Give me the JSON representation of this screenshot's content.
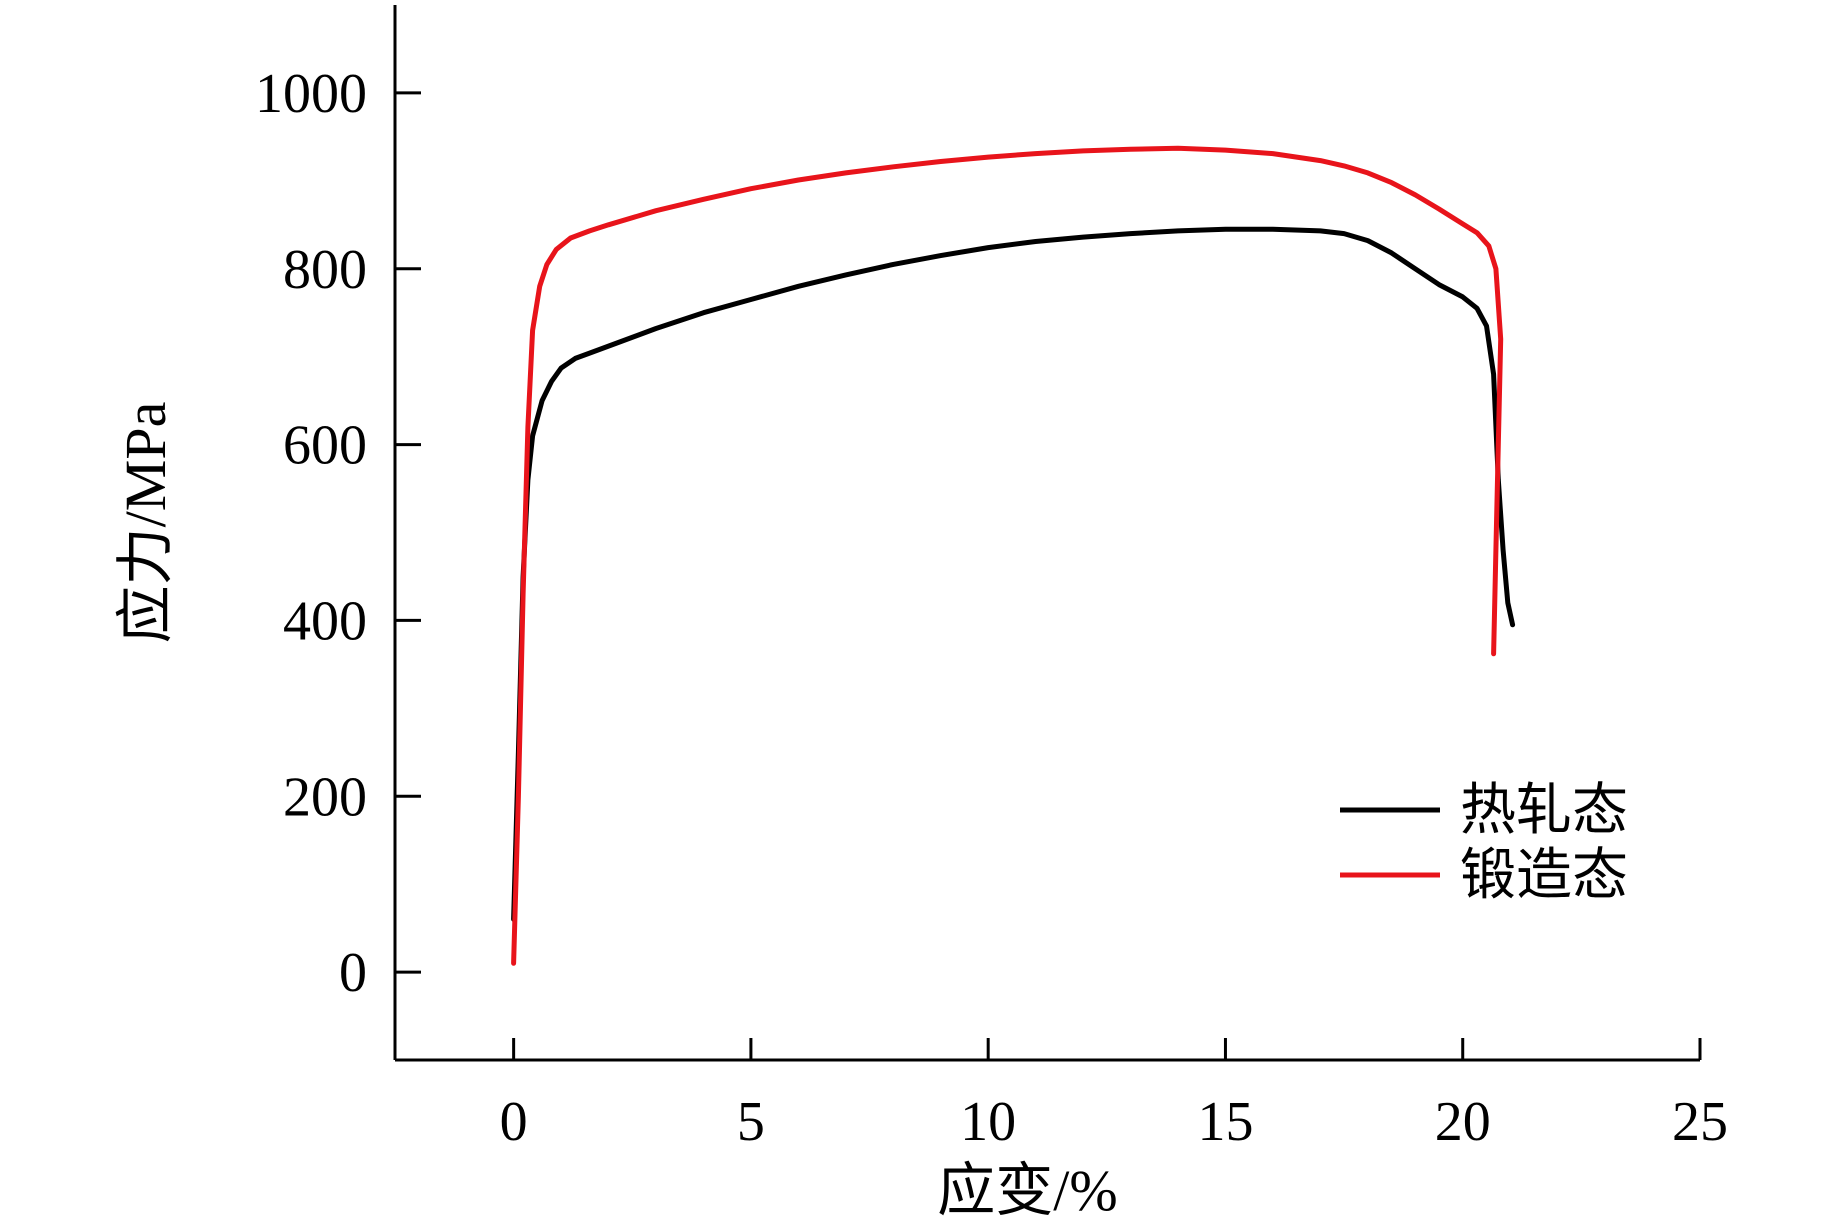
{
  "chart_data": {
    "type": "line",
    "title": "",
    "xlabel": "应变/%",
    "ylabel": "应力/MPa",
    "xlim": [
      -2.5,
      25
    ],
    "ylim": [
      -100,
      1100
    ],
    "x_ticks": [
      0,
      5,
      10,
      15,
      20,
      25
    ],
    "y_ticks": [
      0,
      200,
      400,
      600,
      800,
      1000
    ],
    "x_tick_labels": [
      "0",
      "5",
      "10",
      "15",
      "20",
      "25"
    ],
    "y_tick_labels": [
      "0",
      "200",
      "400",
      "600",
      "800",
      "1000"
    ],
    "grid": false,
    "legend_position": "bottom-right",
    "series": [
      {
        "name": "热轧态",
        "color": "#000000",
        "points": [
          [
            0.0,
            60
          ],
          [
            0.1,
            250
          ],
          [
            0.2,
            450
          ],
          [
            0.3,
            560
          ],
          [
            0.4,
            610
          ],
          [
            0.6,
            650
          ],
          [
            0.8,
            672
          ],
          [
            1.0,
            687
          ],
          [
            1.3,
            698
          ],
          [
            1.6,
            704
          ],
          [
            2.0,
            712
          ],
          [
            3.0,
            732
          ],
          [
            4.0,
            750
          ],
          [
            5.0,
            765
          ],
          [
            6.0,
            780
          ],
          [
            7.0,
            793
          ],
          [
            8.0,
            805
          ],
          [
            9.0,
            815
          ],
          [
            10.0,
            824
          ],
          [
            11.0,
            831
          ],
          [
            12.0,
            836
          ],
          [
            13.0,
            840
          ],
          [
            14.0,
            843
          ],
          [
            15.0,
            845
          ],
          [
            16.0,
            845
          ],
          [
            17.0,
            843
          ],
          [
            17.5,
            840
          ],
          [
            18.0,
            832
          ],
          [
            18.5,
            818
          ],
          [
            19.0,
            800
          ],
          [
            19.5,
            782
          ],
          [
            20.0,
            768
          ],
          [
            20.3,
            755
          ],
          [
            20.5,
            735
          ],
          [
            20.65,
            680
          ],
          [
            20.75,
            560
          ],
          [
            20.85,
            480
          ],
          [
            20.95,
            420
          ],
          [
            21.05,
            395
          ]
        ]
      },
      {
        "name": "锻造态",
        "color": "#e8141b",
        "points": [
          [
            0.0,
            10
          ],
          [
            0.1,
            200
          ],
          [
            0.2,
            430
          ],
          [
            0.3,
            620
          ],
          [
            0.4,
            730
          ],
          [
            0.55,
            780
          ],
          [
            0.7,
            805
          ],
          [
            0.9,
            822
          ],
          [
            1.2,
            835
          ],
          [
            1.6,
            843
          ],
          [
            2.0,
            850
          ],
          [
            3.0,
            866
          ],
          [
            4.0,
            879
          ],
          [
            5.0,
            891
          ],
          [
            6.0,
            901
          ],
          [
            7.0,
            909
          ],
          [
            8.0,
            916
          ],
          [
            9.0,
            922
          ],
          [
            10.0,
            927
          ],
          [
            11.0,
            931
          ],
          [
            12.0,
            934
          ],
          [
            13.0,
            936
          ],
          [
            14.0,
            937
          ],
          [
            15.0,
            935
          ],
          [
            16.0,
            931
          ],
          [
            17.0,
            923
          ],
          [
            17.5,
            917
          ],
          [
            18.0,
            909
          ],
          [
            18.5,
            898
          ],
          [
            19.0,
            884
          ],
          [
            19.5,
            868
          ],
          [
            20.0,
            851
          ],
          [
            20.3,
            841
          ],
          [
            20.55,
            826
          ],
          [
            20.7,
            800
          ],
          [
            20.8,
            720
          ],
          [
            20.75,
            600
          ],
          [
            20.7,
            480
          ],
          [
            20.65,
            362
          ]
        ]
      }
    ]
  }
}
